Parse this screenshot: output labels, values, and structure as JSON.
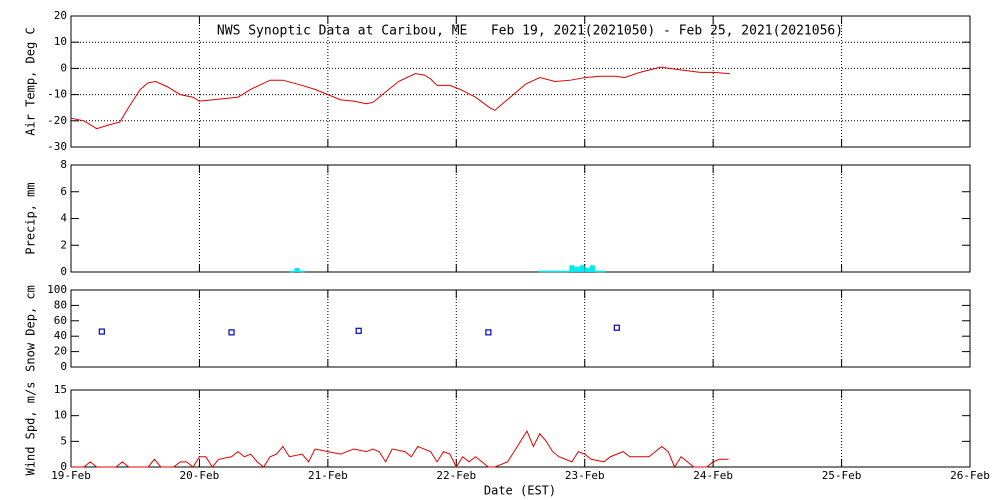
{
  "chart_data": [
    {
      "type": "line",
      "title": "NWS Synoptic Data at Caribou, ME   Feb 19, 2021(2021050) - Feb 25, 2021(2021056)",
      "ylabel": "Air Temp, Deg C",
      "color": "#e00000",
      "x": [
        0,
        0.1,
        0.2,
        0.3,
        0.38,
        0.46,
        0.54,
        0.6,
        0.66,
        0.75,
        0.85,
        0.95,
        1.0,
        1.1,
        1.2,
        1.3,
        1.4,
        1.55,
        1.65,
        1.8,
        1.9,
        2.0,
        2.1,
        2.2,
        2.3,
        2.35,
        2.45,
        2.55,
        2.68,
        2.75,
        2.8,
        2.85,
        2.95,
        3.03,
        3.15,
        3.26,
        3.3,
        3.42,
        3.54,
        3.65,
        3.77,
        3.89,
        4.0,
        4.12,
        4.24,
        4.31,
        4.43,
        4.59,
        4.74,
        4.9,
        5.0,
        5.13
      ],
      "values": [
        -19,
        -20,
        -23,
        -21.5,
        -20.5,
        -14,
        -8,
        -5.5,
        -5,
        -7,
        -10,
        -11,
        -12.5,
        -12,
        -11.5,
        -11,
        -8,
        -4.5,
        -4.5,
        -6.5,
        -8,
        -10,
        -12,
        -12.5,
        -13.5,
        -13,
        -9,
        -5,
        -2,
        -2.5,
        -4,
        -6.5,
        -6.5,
        -8,
        -11,
        -15,
        -16,
        -11,
        -6,
        -3.5,
        -5,
        -4.5,
        -3.5,
        -3,
        -3,
        -3.5,
        -1.5,
        0.5,
        -0.5,
        -1.5,
        -1.5,
        -2
      ],
      "xlim": [
        0,
        7
      ],
      "xticks": [
        0,
        1,
        2,
        3,
        4,
        5,
        6,
        7
      ],
      "ylim": [
        -30,
        20
      ],
      "yticks": [
        -30,
        -20,
        -10,
        0,
        10,
        20
      ],
      "grid": "both"
    },
    {
      "type": "bar",
      "ylabel": "Precip, mm",
      "color": "#00e8f0",
      "x": [
        1.72,
        1.76,
        1.8,
        3.66,
        3.7,
        3.74,
        3.78,
        3.82,
        3.86,
        3.9,
        3.94,
        3.98,
        4.02,
        4.06,
        4.1,
        4.14
      ],
      "values": [
        0.1,
        0.3,
        0.1,
        0.1,
        0.1,
        0.1,
        0.1,
        0.1,
        0.1,
        0.5,
        0.4,
        0.5,
        0.3,
        0.5,
        0.1,
        0.1
      ],
      "xlim": [
        0,
        7
      ],
      "xticks": [
        0,
        1,
        2,
        3,
        4,
        5,
        6,
        7
      ],
      "ylim": [
        0,
        8
      ],
      "yticks": [
        0,
        2,
        4,
        6,
        8
      ],
      "grid": "x"
    },
    {
      "type": "scatter",
      "ylabel": "Snow Dep, cm",
      "color": "#0000c0",
      "x": [
        0.24,
        1.25,
        2.24,
        3.25,
        4.25
      ],
      "values": [
        46,
        45,
        47,
        45,
        51
      ],
      "xlim": [
        0,
        7
      ],
      "xticks": [
        0,
        1,
        2,
        3,
        4,
        5,
        6,
        7
      ],
      "ylim": [
        0,
        100
      ],
      "yticks": [
        0,
        20,
        40,
        60,
        80,
        100
      ],
      "grid": "x"
    },
    {
      "type": "line",
      "ylabel": "Wind Spd, m/s",
      "xlabel": "Date (EST)",
      "color": "#e00000",
      "x": [
        0,
        0.1,
        0.15,
        0.2,
        0.35,
        0.4,
        0.45,
        0.6,
        0.65,
        0.7,
        0.8,
        0.85,
        0.9,
        0.95,
        1.0,
        1.05,
        1.1,
        1.15,
        1.25,
        1.3,
        1.35,
        1.4,
        1.45,
        1.5,
        1.55,
        1.6,
        1.65,
        1.7,
        1.8,
        1.85,
        1.9,
        2.0,
        2.1,
        2.2,
        2.3,
        2.35,
        2.4,
        2.45,
        2.5,
        2.6,
        2.65,
        2.7,
        2.8,
        2.85,
        2.9,
        2.95,
        3.0,
        3.05,
        3.1,
        3.15,
        3.2,
        3.25,
        3.3,
        3.4,
        3.45,
        3.5,
        3.55,
        3.6,
        3.65,
        3.7,
        3.75,
        3.8,
        3.9,
        3.95,
        4.0,
        4.05,
        4.15,
        4.2,
        4.3,
        4.35,
        4.45,
        4.5,
        4.6,
        4.65,
        4.7,
        4.75,
        4.8,
        4.85,
        4.9,
        4.95,
        5.0,
        5.05,
        5.12
      ],
      "values": [
        0,
        0,
        1,
        0,
        0,
        1,
        0,
        0,
        1.5,
        0,
        0,
        1,
        1,
        0,
        2,
        2,
        0,
        1.5,
        2,
        3,
        2,
        2.5,
        1,
        0,
        2,
        2.5,
        4,
        2,
        2.5,
        1,
        3.5,
        3,
        2.5,
        3.5,
        3,
        3.5,
        3,
        1,
        3.5,
        3,
        2,
        4,
        3,
        1,
        3,
        2.5,
        0,
        2,
        1,
        2,
        1,
        0,
        0,
        1,
        3,
        5,
        7,
        4,
        6.5,
        5,
        3,
        2,
        1,
        3,
        2.5,
        1.5,
        1,
        2,
        3,
        2,
        2,
        2,
        4,
        3,
        0,
        2,
        1,
        0,
        0,
        0,
        1,
        1.5,
        1.5
      ],
      "xlim": [
        0,
        7
      ],
      "xticks": [
        {
          "value": 0,
          "label": "19-Feb"
        },
        {
          "value": 1,
          "label": "20-Feb"
        },
        {
          "value": 2,
          "label": "21-Feb"
        },
        {
          "value": 3,
          "label": "22-Feb"
        },
        {
          "value": 4,
          "label": "23-Feb"
        },
        {
          "value": 5,
          "label": "24-Feb"
        },
        {
          "value": 6,
          "label": "25-Feb"
        },
        {
          "value": 7,
          "label": "26-Feb"
        }
      ],
      "ylim": [
        0,
        15
      ],
      "yticks": [
        0,
        5,
        10,
        15
      ],
      "grid": "x"
    }
  ]
}
